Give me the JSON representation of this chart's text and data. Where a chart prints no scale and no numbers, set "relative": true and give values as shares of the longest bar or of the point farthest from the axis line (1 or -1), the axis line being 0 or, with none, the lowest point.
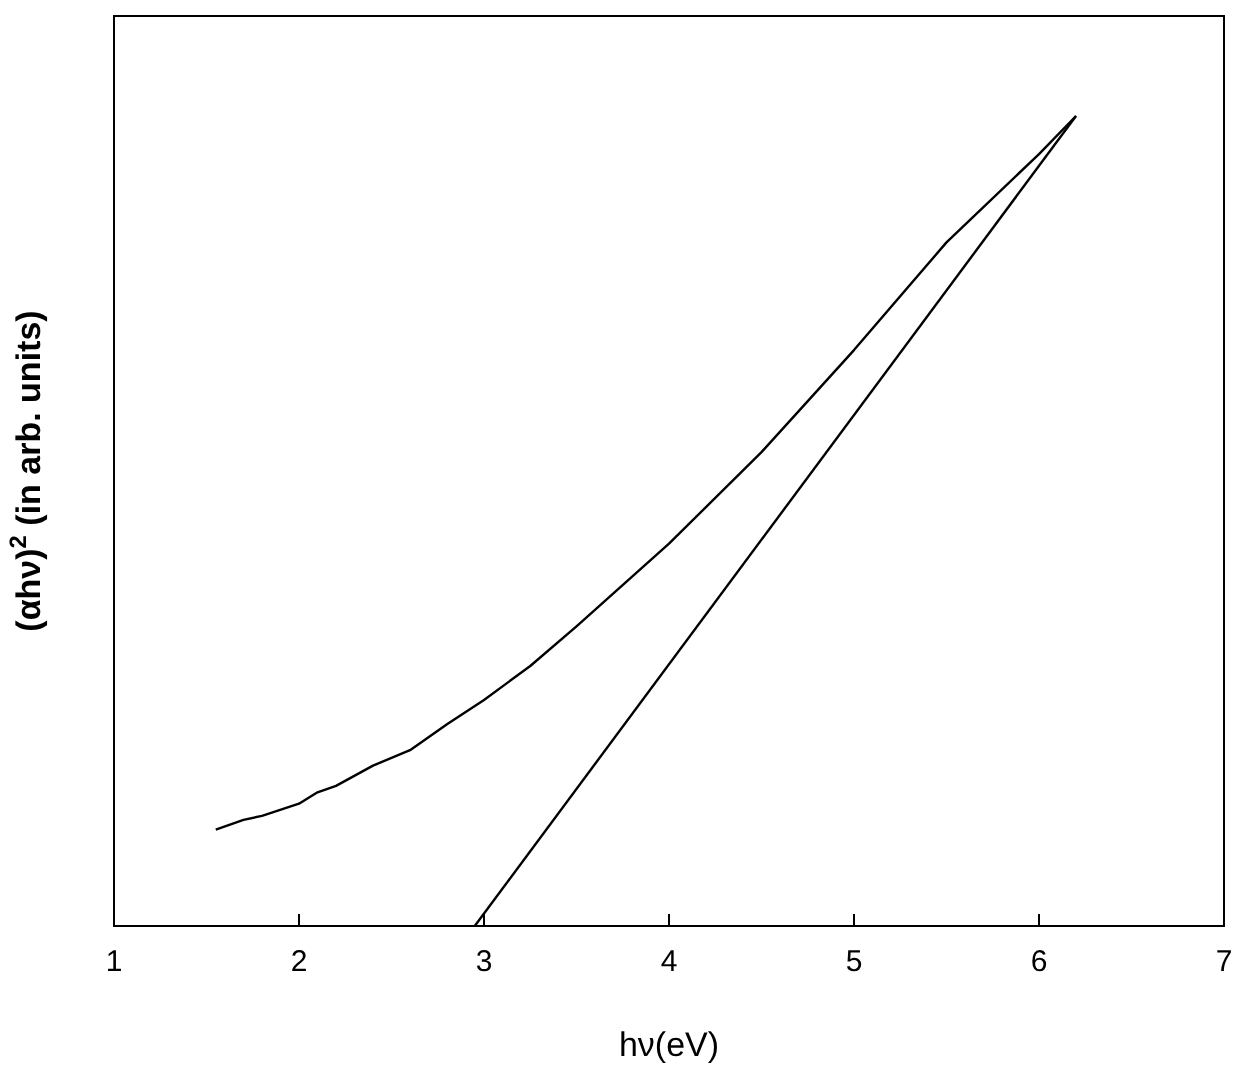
{
  "chart_data": {
    "type": "line",
    "xlabel": "hν(eV)",
    "ylabel": "(αhν)$^{2}$ (in arb. units)",
    "relative": true,
    "xlim": [
      1,
      7
    ],
    "xticks": [
      1,
      2,
      3,
      4,
      5,
      6,
      7
    ],
    "tick_labels": "x",
    "marker": "none",
    "line_style": "solid",
    "series": [
      {
        "color": "#000000",
        "x": [
          1.55,
          1.7,
          1.8,
          2.0,
          2.1,
          2.2,
          2.4,
          2.6,
          2.8,
          3.0,
          3.25,
          3.5,
          4.0,
          4.5,
          5.0,
          5.5,
          6.0,
          6.2
        ],
        "values": [
          0.119,
          0.131,
          0.136,
          0.151,
          0.165,
          0.173,
          0.198,
          0.217,
          0.249,
          0.279,
          0.321,
          0.37,
          0.472,
          0.585,
          0.711,
          0.844,
          0.953,
          1.0
        ]
      },
      {
        "color": "#000000",
        "type": "line",
        "x": [
          2.95,
          6.2
        ],
        "values": [
          0,
          1
        ]
      }
    ]
  }
}
